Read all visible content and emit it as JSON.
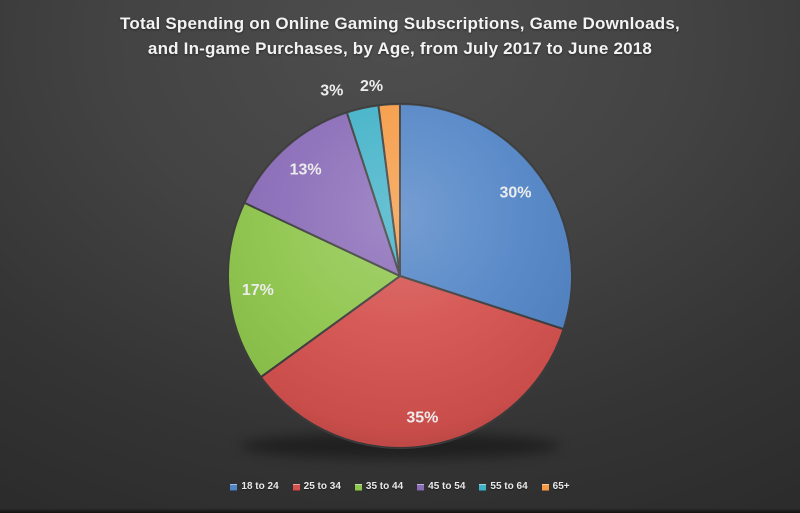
{
  "chart_data": {
    "type": "pie",
    "title": "Total Spending on Online Gaming Subscriptions, Game Downloads, and In-game Purchases, by Age, from July 2017 to June 2018",
    "title_lines": [
      "Total Spending on Online Gaming Subscriptions, Game Downloads,",
      "and In-game Purchases, by Age, from July 2017 to June 2018"
    ],
    "categories": [
      "18 to 24",
      "25 to 34",
      "35 to 44",
      "45 to 54",
      "55 to 64",
      "65+"
    ],
    "values": [
      30,
      35,
      17,
      13,
      3,
      2
    ],
    "data_labels": [
      "30%",
      "35%",
      "17%",
      "13%",
      "3%",
      "2%"
    ],
    "colors": [
      "#5285C6",
      "#D4514E",
      "#8FC64D",
      "#8A6CB8",
      "#42B2C8",
      "#F59B45"
    ],
    "unit": "%",
    "start_angle_deg": 0,
    "direction": "clockwise",
    "legend_position": "bottom",
    "background_colors": {
      "center": "#4e4e4e",
      "edge": "#2b2b2b"
    }
  }
}
